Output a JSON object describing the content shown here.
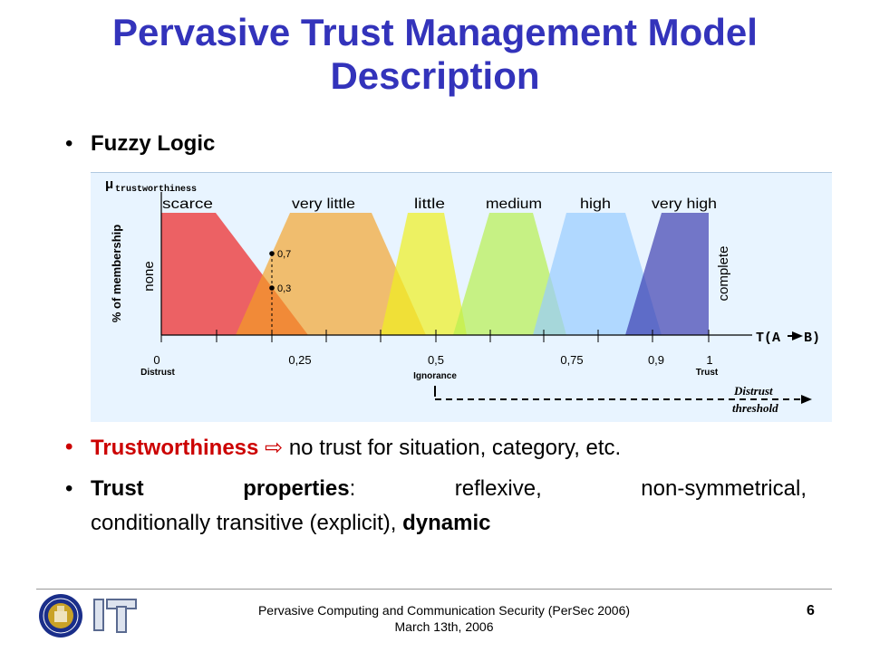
{
  "slide": {
    "title_line1": "Pervasive Trust Management Model",
    "title_line2": "Description",
    "bullet1": "Fuzzy Logic",
    "bullet2": {
      "term": "Trustworthiness",
      "arrow": "⇨",
      "text": " no trust for situation, category, etc."
    },
    "bullet3": {
      "term": "Trust",
      "term2": "properties",
      "colon": ":",
      "w1": "reflexive,",
      "w2": "non-symmetrical,",
      "line2": "conditionally transitive (explicit), ",
      "line2_bold": "dynamic"
    },
    "page_number": "6"
  },
  "diagram": {
    "y_axis_symbol": "μ",
    "y_axis_subscript": "trustworthiness",
    "y_axis_label": "% of membership",
    "x_axis_label": "T(A",
    "x_axis_label_end": "B)",
    "left_label": "none",
    "right_label": "complete",
    "sets": [
      {
        "name": "scarce",
        "color": "#ee2222"
      },
      {
        "name": "very little",
        "color": "#f5a020"
      },
      {
        "name": "little",
        "color": "#f0f020"
      },
      {
        "name": "medium",
        "color": "#b8f050"
      },
      {
        "name": "high",
        "color": "#99ccff"
      },
      {
        "name": "very high",
        "color": "#3333aa"
      }
    ],
    "point_high": "0,7",
    "point_low": "0,3",
    "ticks": [
      "0",
      "0,25",
      "0,5",
      "0,75",
      "0,9",
      "1"
    ],
    "sub_labels": {
      "distrust": "Distrust",
      "ignorance": "Ignorance",
      "trust": "Trust"
    },
    "threshold_label_1": "Distrust",
    "threshold_label_2": "threshold",
    "background": "#e8f4ff"
  },
  "footer": {
    "line1": "Pervasive Computing and Communication Security  (PerSec 2006)",
    "line2": "March 13th, 2006"
  },
  "logos": {
    "logo1": "university-seal-icon",
    "logo2": "it-logo-icon"
  }
}
